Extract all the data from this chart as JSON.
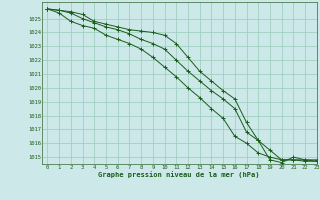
{
  "title": "Graphe pression niveau de la mer (hPa)",
  "bg_color": "#cce8e8",
  "grid_color": "#99ccbb",
  "line_color": "#1a5c1a",
  "marker_color": "#1a5c1a",
  "xlim": [
    -0.5,
    23
  ],
  "ylim": [
    1014.5,
    1026.2
  ],
  "xticks": [
    0,
    1,
    2,
    3,
    4,
    5,
    6,
    7,
    8,
    9,
    10,
    11,
    12,
    13,
    14,
    15,
    16,
    17,
    18,
    19,
    20,
    21,
    22,
    23
  ],
  "yticks": [
    1015,
    1016,
    1017,
    1018,
    1019,
    1020,
    1021,
    1022,
    1023,
    1024,
    1025
  ],
  "series1": [
    1025.7,
    1025.6,
    1025.5,
    1025.3,
    1024.8,
    1024.6,
    1024.4,
    1024.2,
    1024.1,
    1024.0,
    1023.8,
    1023.2,
    1022.2,
    1021.2,
    1020.5,
    1019.8,
    1019.2,
    1017.5,
    1016.2,
    1014.8,
    1014.6,
    1015.0,
    1014.8,
    1014.8
  ],
  "series2": [
    1025.7,
    1025.6,
    1025.4,
    1025.0,
    1024.7,
    1024.4,
    1024.2,
    1023.9,
    1023.5,
    1023.2,
    1022.8,
    1022.0,
    1021.2,
    1020.5,
    1019.8,
    1019.2,
    1018.5,
    1016.8,
    1016.2,
    1015.5,
    1014.8,
    1014.8,
    1014.8,
    1014.7
  ],
  "series3": [
    1025.7,
    1025.4,
    1024.8,
    1024.5,
    1024.3,
    1023.8,
    1023.5,
    1023.2,
    1022.8,
    1022.2,
    1021.5,
    1020.8,
    1020.0,
    1019.3,
    1018.5,
    1017.8,
    1016.5,
    1016.0,
    1015.3,
    1015.0,
    1014.8,
    1014.8,
    1014.7,
    1014.7
  ]
}
